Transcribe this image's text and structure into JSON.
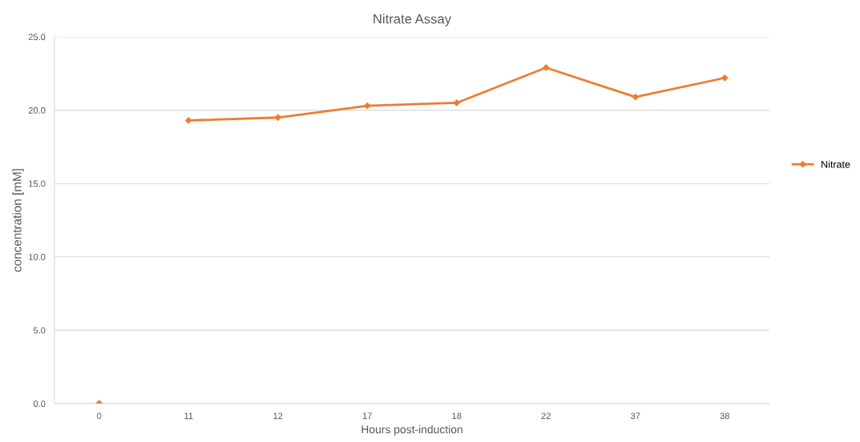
{
  "chart_data": {
    "type": "line",
    "title": "Nitrate Assay",
    "xlabel": "Hours post-induction",
    "ylabel": "concentration [mM]",
    "categories": [
      "0",
      "11",
      "12",
      "17",
      "18",
      "22",
      "37",
      "38"
    ],
    "series": [
      {
        "name": "Nitrate",
        "color": "#ed7d31",
        "values": [
          null,
          19.3,
          19.5,
          20.3,
          20.5,
          22.9,
          20.9,
          22.2
        ]
      },
      {
        "type": "scatter",
        "color": "#ed7d31",
        "values": [
          0,
          null,
          null,
          null,
          null,
          null,
          null,
          null
        ]
      }
    ],
    "ylim": [
      0,
      25
    ],
    "yticks": [
      {
        "value": 0,
        "label": "0.0"
      },
      {
        "value": 5,
        "label": "5.0"
      },
      {
        "value": 10,
        "label": "10.0"
      },
      {
        "value": 15,
        "label": "15.0"
      },
      {
        "value": 20,
        "label": "20.0"
      },
      {
        "value": 25,
        "label": "25.0"
      }
    ],
    "grid": "y",
    "legend": "right",
    "marker": "diamond",
    "line_style": "solid"
  }
}
